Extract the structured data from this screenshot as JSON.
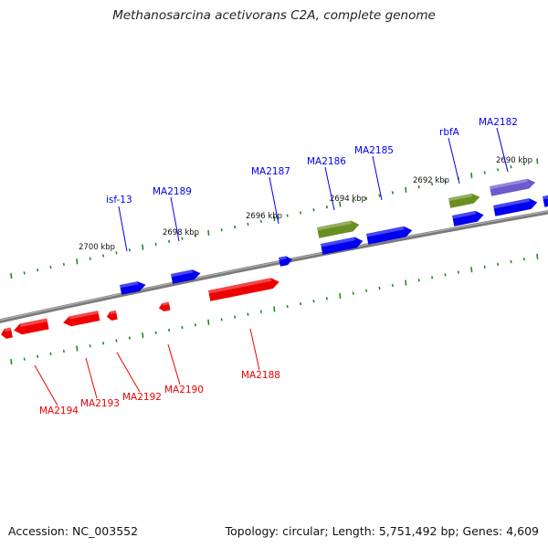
{
  "title": "Methanosarcina acetivorans C2A, complete genome",
  "footer": {
    "accession": "Accession: NC_003552",
    "topology": "Topology: circular; Length: 5,751,492 bp; Genes: 4,609"
  },
  "colors": {
    "forward": "#0000ee",
    "reverse": "#ee0000",
    "rna": "#6b8e23",
    "other": "#6a5acd",
    "backbone": "#808080",
    "ticks": "#228b22"
  },
  "ticks": [
    {
      "kbp": 2690,
      "label": "2690 kbp"
    },
    {
      "kbp": 2692,
      "label": "2692 kbp"
    },
    {
      "kbp": 2694,
      "label": "2694 kbp"
    },
    {
      "kbp": 2696,
      "label": "2696 kbp"
    },
    {
      "kbp": 2698,
      "label": "2698 kbp"
    },
    {
      "kbp": 2700,
      "label": "2700 kbp"
    }
  ],
  "forward_labels": [
    {
      "name": "isf-13"
    },
    {
      "name": "MA2189"
    },
    {
      "name": "MA2187"
    },
    {
      "name": "MA2186"
    },
    {
      "name": "MA2185"
    },
    {
      "name": "rbfA"
    },
    {
      "name": "MA2182"
    }
  ],
  "reverse_labels": [
    {
      "name": "MA2194"
    },
    {
      "name": "MA2193"
    },
    {
      "name": "MA2192"
    },
    {
      "name": "MA2190"
    },
    {
      "name": "MA2188"
    }
  ]
}
